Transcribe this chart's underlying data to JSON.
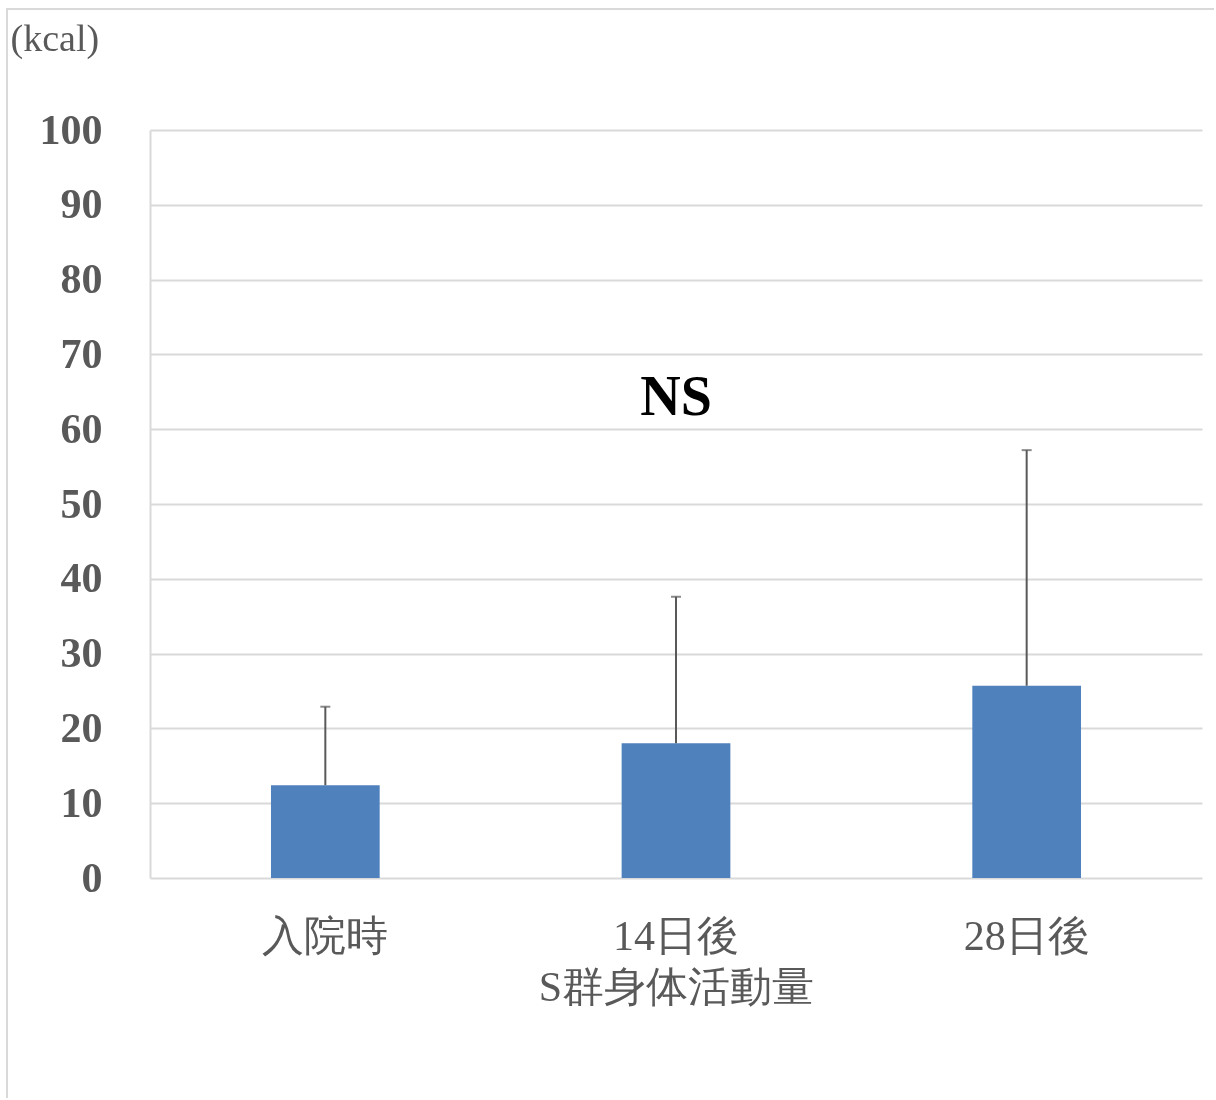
{
  "chart_data": {
    "type": "bar",
    "ylabel": "(kcal)",
    "xlabel": "S群身体活動量",
    "categories": [
      "入院時",
      "14日後",
      "28日後"
    ],
    "values": [
      12.4,
      18.0,
      25.7
    ],
    "errors": [
      [
        12.4,
        22.9
      ],
      [
        18.0,
        37.6
      ],
      [
        25.7,
        57.2
      ]
    ],
    "color": "#4f81bd",
    "ylim": [
      0,
      100
    ],
    "yticks": [
      0,
      10,
      20,
      30,
      40,
      50,
      60,
      70,
      80,
      90,
      100
    ],
    "grid": "y",
    "annotations": [
      "NS"
    ]
  }
}
